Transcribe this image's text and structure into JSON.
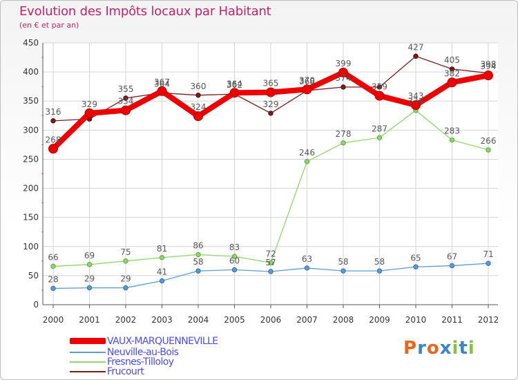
{
  "header": {
    "title": "Evolution des Impôts locaux par Habitant",
    "subtitle": "(en € et par an)"
  },
  "logo": {
    "letters": [
      "P",
      "r",
      "o",
      "x",
      "i",
      "t",
      "i"
    ],
    "colors": [
      "#e8671b",
      "#3a87c8",
      "#e8671b",
      "#3a87c8",
      "#8cbf3f",
      "#3a87c8",
      "#8cbf3f"
    ]
  },
  "chart_data": {
    "type": "line",
    "title": "Evolution des Impôts locaux par Habitant",
    "subtitle": "(en € et par an)",
    "xlabel": "",
    "ylabel": "",
    "x": [
      "2000",
      "2001",
      "2002",
      "2003",
      "2004",
      "2005",
      "2006",
      "2007",
      "2008",
      "2009",
      "2010",
      "2011",
      "2012"
    ],
    "ylim": [
      0,
      450
    ],
    "yticks": [
      0,
      50,
      100,
      150,
      200,
      250,
      300,
      350,
      400,
      450
    ],
    "grid": true,
    "legend_position": "bottom-left",
    "series": [
      {
        "name": "Frucourt",
        "color": "#7a1c1c",
        "values": [
          316,
          319,
          355,
          364,
          360,
          362,
          329,
          368,
          374,
          374,
          427,
          405,
          398
        ],
        "labels": [
          "316",
          "",
          "355",
          "364",
          "360",
          "362",
          "329",
          "368",
          "374",
          "",
          "427",
          "405",
          "398"
        ]
      },
      {
        "name": "Fresnes-Tilloloy",
        "color": "#8fd66a",
        "values": [
          66,
          69,
          75,
          81,
          86,
          83,
          72,
          246,
          278,
          287,
          334,
          283,
          266
        ],
        "labels": [
          "66",
          "69",
          "75",
          "81",
          "86",
          "83",
          "72",
          "246",
          "278",
          "287",
          "334",
          "283",
          "266"
        ]
      },
      {
        "name": "Neuville-au-Bois",
        "color": "#5b9bd5",
        "values": [
          28,
          29,
          29,
          41,
          58,
          60,
          57,
          63,
          58,
          58,
          65,
          67,
          71
        ],
        "labels": [
          "28",
          "29",
          "29",
          "41",
          "58",
          "60",
          "57",
          "63",
          "58",
          "58",
          "65",
          "67",
          "71"
        ]
      },
      {
        "name": "VAUX-MARQUENNEVILLE",
        "color": "#ee0000",
        "values": [
          268,
          329,
          334,
          367,
          324,
          364,
          365,
          370,
          399,
          359,
          343,
          382,
          394
        ],
        "labels": [
          "268",
          "329",
          "334",
          "367",
          "324",
          "364",
          "365",
          "370",
          "399",
          "359",
          "343",
          "382",
          "394"
        ]
      }
    ]
  }
}
